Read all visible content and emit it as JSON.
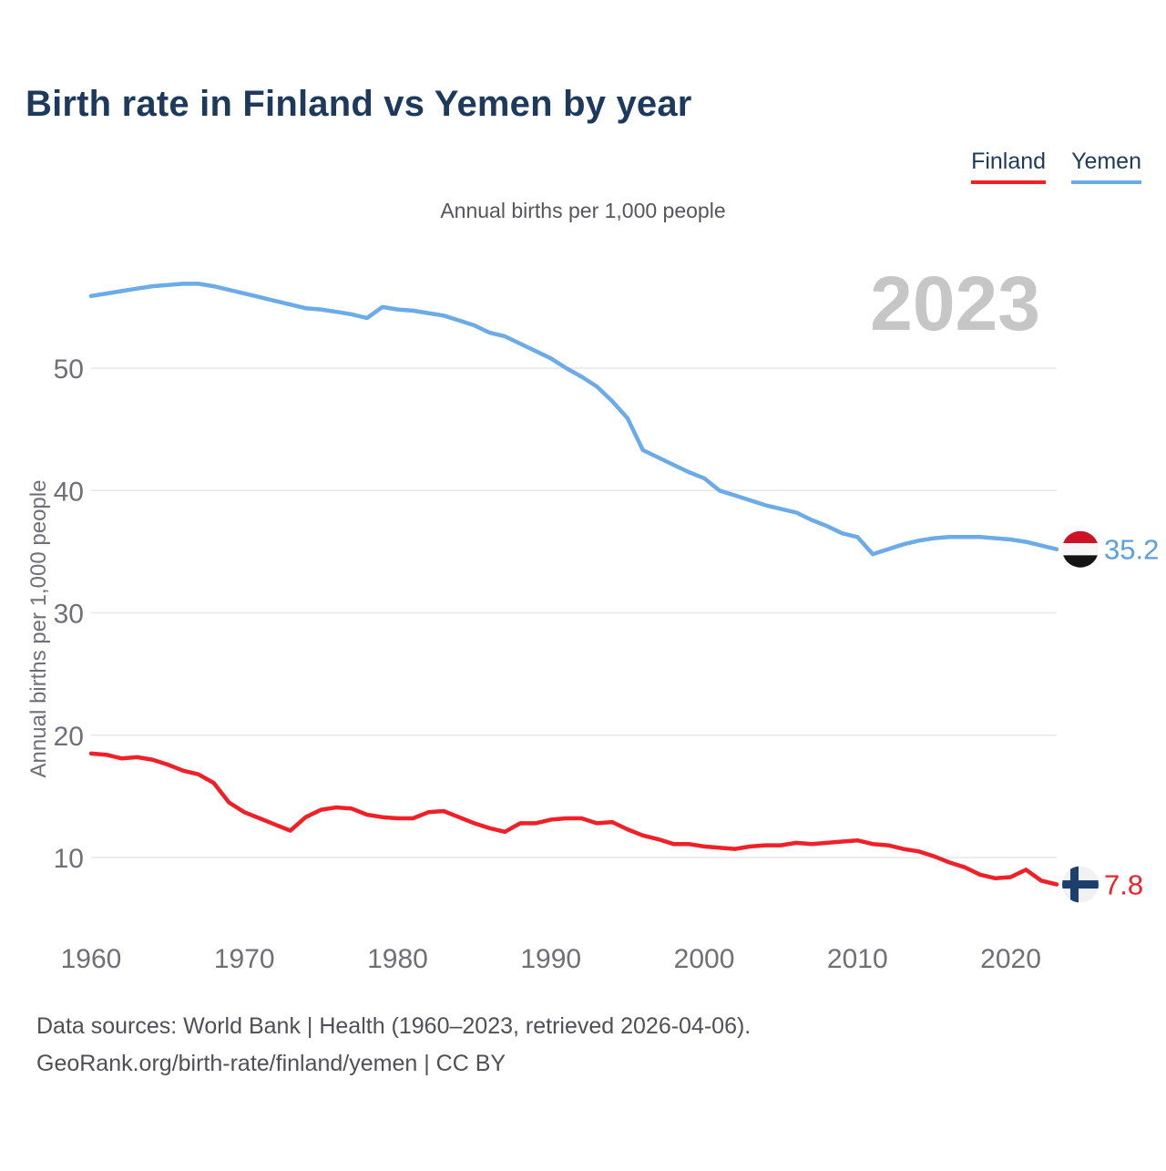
{
  "title": "Birth rate in Finland vs Yemen by year",
  "subtitle": "Annual births per 1,000 people",
  "watermark": "2023",
  "legend": {
    "items": [
      {
        "label": "Finland",
        "color": "#ef2028"
      },
      {
        "label": "Yemen",
        "color": "#6aabe8"
      }
    ]
  },
  "y_axis": {
    "title": "Annual births per 1,000 people"
  },
  "footer": {
    "line1": "Data sources: World Bank | Health (1960–2023, retrieved 2026-04-06).",
    "line2": "GeoRank.org/birth-rate/finland/yemen | CC BY"
  },
  "end_labels": [
    {
      "series": "Yemen",
      "value": "35.2",
      "text_color": "#5b9fe0"
    },
    {
      "series": "Finland",
      "value": "7.8",
      "text_color": "#ef2028"
    }
  ],
  "flag_colors": {
    "yemen": {
      "top": "#ce1126",
      "middle": "#f7f7f7",
      "bottom": "#141414"
    },
    "finland": {
      "background": "#f1f1f3",
      "cross": "#1c3f6e"
    }
  },
  "colors": {
    "gridline": "#e7e7e7",
    "tick_text": "#6f6f78",
    "watermark": "#c6c6c6"
  },
  "chart_data": {
    "type": "line",
    "title": "Birth rate in Finland vs Yemen by year",
    "ylabel": "Annual births per 1,000 people",
    "xlim": [
      1960,
      2023
    ],
    "ylim": [
      5,
      60
    ],
    "yticks": [
      10,
      20,
      30,
      40,
      50
    ],
    "xticks": [
      1960,
      1970,
      1980,
      1990,
      2000,
      2010,
      2020
    ],
    "grid": true,
    "legend_position": "top-right",
    "x": [
      1960,
      1961,
      1962,
      1963,
      1964,
      1965,
      1966,
      1967,
      1968,
      1969,
      1970,
      1971,
      1972,
      1973,
      1974,
      1975,
      1976,
      1977,
      1978,
      1979,
      1980,
      1981,
      1982,
      1983,
      1984,
      1985,
      1986,
      1987,
      1988,
      1989,
      1990,
      1991,
      1992,
      1993,
      1994,
      1995,
      1996,
      1997,
      1998,
      1999,
      2000,
      2001,
      2002,
      2003,
      2004,
      2005,
      2006,
      2007,
      2008,
      2009,
      2010,
      2011,
      2012,
      2013,
      2014,
      2015,
      2016,
      2017,
      2018,
      2019,
      2020,
      2021,
      2022,
      2023
    ],
    "series": [
      {
        "name": "Yemen",
        "color": "#6aabe8",
        "values": [
          55.9,
          56.1,
          56.3,
          56.5,
          56.7,
          56.8,
          56.9,
          56.9,
          56.7,
          56.4,
          56.1,
          55.8,
          55.5,
          55.2,
          54.9,
          54.8,
          54.6,
          54.4,
          54.1,
          55.0,
          54.8,
          54.7,
          54.5,
          54.3,
          53.9,
          53.5,
          52.9,
          52.6,
          52.0,
          51.4,
          50.8,
          50.0,
          49.3,
          48.5,
          47.3,
          45.9,
          43.3,
          42.7,
          42.1,
          41.5,
          41.0,
          40.0,
          39.6,
          39.2,
          38.8,
          38.5,
          38.2,
          37.6,
          37.1,
          36.5,
          36.2,
          34.8,
          35.2,
          35.6,
          35.9,
          36.1,
          36.2,
          36.2,
          36.2,
          36.1,
          36.0,
          35.8,
          35.5,
          35.2
        ]
      },
      {
        "name": "Finland",
        "color": "#ef2028",
        "values": [
          18.5,
          18.4,
          18.1,
          18.2,
          18.0,
          17.6,
          17.1,
          16.8,
          16.1,
          14.5,
          13.7,
          13.2,
          12.7,
          12.2,
          13.3,
          13.9,
          14.1,
          14.0,
          13.5,
          13.3,
          13.2,
          13.2,
          13.7,
          13.8,
          13.3,
          12.8,
          12.4,
          12.1,
          12.8,
          12.8,
          13.1,
          13.2,
          13.2,
          12.8,
          12.9,
          12.3,
          11.8,
          11.5,
          11.1,
          11.1,
          10.9,
          10.8,
          10.7,
          10.9,
          11.0,
          11.0,
          11.2,
          11.1,
          11.2,
          11.3,
          11.4,
          11.1,
          11.0,
          10.7,
          10.5,
          10.1,
          9.6,
          9.2,
          8.6,
          8.3,
          8.4,
          9.0,
          8.1,
          7.8
        ]
      }
    ]
  }
}
